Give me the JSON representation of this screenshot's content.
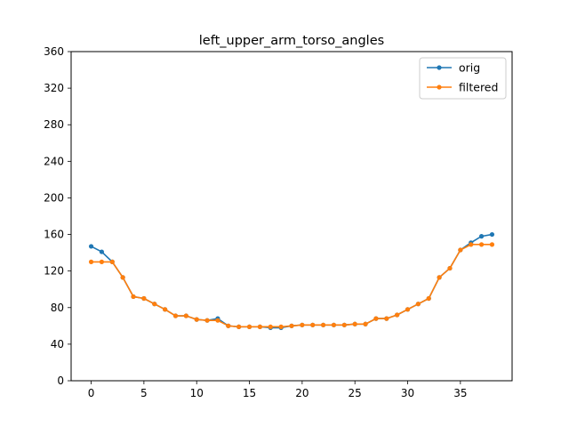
{
  "chart_data": {
    "type": "line",
    "title": "left_upper_arm_torso_angles",
    "xlabel": "",
    "ylabel": "",
    "xlim": [
      -1.9,
      39.9
    ],
    "ylim": [
      0,
      360
    ],
    "xticks": [
      0,
      5,
      10,
      15,
      20,
      25,
      30,
      35
    ],
    "yticks": [
      0,
      40,
      80,
      120,
      160,
      200,
      240,
      280,
      320,
      360
    ],
    "grid": false,
    "legend": "top-right",
    "x": [
      0,
      1,
      2,
      3,
      4,
      5,
      6,
      7,
      8,
      9,
      10,
      11,
      12,
      13,
      14,
      15,
      16,
      17,
      18,
      19,
      20,
      21,
      22,
      23,
      24,
      25,
      26,
      27,
      28,
      29,
      30,
      31,
      32,
      33,
      34,
      35,
      36,
      37,
      38
    ],
    "series": [
      {
        "name": "orig",
        "color": "#1f77b4",
        "values": [
          147,
          141,
          130,
          113,
          92,
          90,
          84,
          78,
          71,
          71,
          67,
          66,
          68,
          60,
          59,
          59,
          59,
          58,
          58,
          60,
          61,
          61,
          61,
          61,
          61,
          62,
          62,
          68,
          68,
          72,
          78,
          84,
          90,
          113,
          123,
          143,
          151,
          158,
          160
        ]
      },
      {
        "name": "filtered",
        "color": "#ff7f0e",
        "values": [
          130,
          130,
          130,
          113,
          92,
          90,
          84,
          78,
          71,
          71,
          67,
          66,
          66,
          60,
          59,
          59,
          59,
          59,
          59,
          60,
          61,
          61,
          61,
          61,
          61,
          62,
          62,
          68,
          68,
          72,
          78,
          84,
          90,
          113,
          123,
          143,
          149,
          149,
          149
        ]
      }
    ]
  }
}
